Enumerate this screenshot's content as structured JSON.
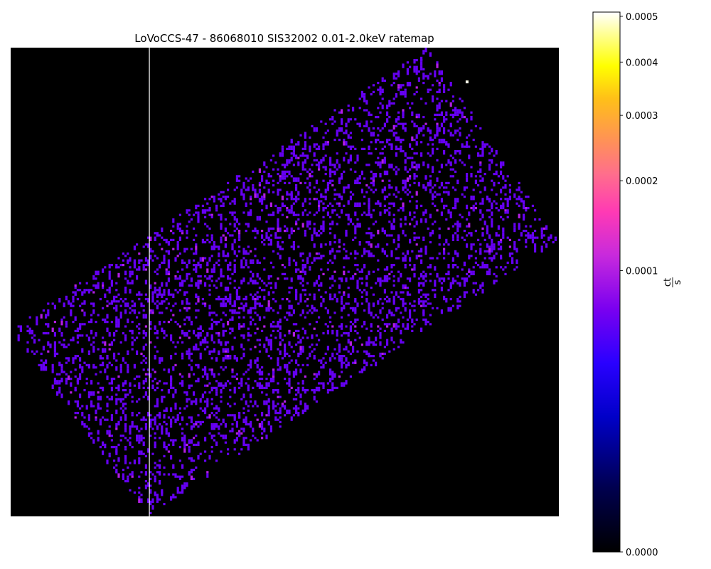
{
  "chart_data": {
    "type": "heatmap",
    "title": "LoVoCCS-47 - 86068010 SIS32002 0.01-2.0keV ratemap",
    "xlabel": "",
    "ylabel": "",
    "colormap": "gnuplot2",
    "background_color": "#000000",
    "colorbar": {
      "label_numerator": "ct",
      "label_denominator": "s",
      "scale": "power-law",
      "range": [
        0.0,
        0.00051
      ],
      "tick_values": [
        0.0,
        0.0001,
        0.0002,
        0.0003,
        0.0004,
        0.0005
      ],
      "tick_labels": [
        "0.0000",
        "0.0001",
        "0.0002",
        "0.0003",
        "0.0004",
        "0.0005"
      ]
    },
    "image_summary": {
      "typical_pixel_value": 6e-05,
      "elevated_pixel_value": 0.0001,
      "max_pixel_value": 0.0005,
      "footprint_shape": "rotated rectangle (tilted detector field)",
      "artifact": "vertical white column line"
    },
    "footprint_corners_frac": [
      [
        0.0,
        0.6
      ],
      [
        0.76,
        0.0
      ],
      [
        1.0,
        0.41
      ],
      [
        0.25,
        1.0
      ]
    ],
    "white_column_frac": 0.253,
    "bright_pixel_frac": [
      0.83,
      0.07
    ]
  }
}
